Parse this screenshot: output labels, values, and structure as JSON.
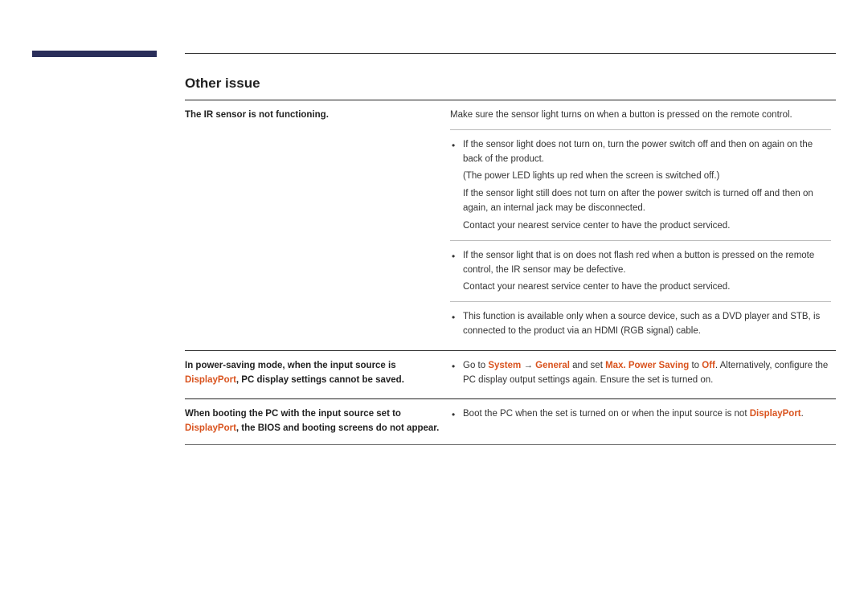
{
  "section_title": "Other issue",
  "row1": {
    "left": "The IR sensor is not functioning.",
    "intro": "Make sure the sensor light turns on when a button is pressed on the remote control.",
    "b1": "If the sensor light does not turn on, turn the power switch off and then on again on the back of the product.",
    "b1_paren": "(The power LED lights up red when the screen is switched off.)",
    "b1_p2": "If the sensor light still does not turn on after the power switch is turned off and then on again, an internal jack may be disconnected.",
    "b1_p3": "Contact your nearest service center to have the product serviced.",
    "b2": "If the sensor light that is on does not flash red when a button is pressed on the remote control, the IR sensor may be defective.",
    "b2_p2": "Contact your nearest service center to have the product serviced.",
    "b3": "This function is available only when a source device, such as a DVD player and STB, is connected to the product via an HDMI (RGB signal) cable."
  },
  "row2": {
    "left_pre": "In power-saving mode, when the input source is ",
    "left_hl": "DisplayPort",
    "left_post": ", PC display settings cannot be saved.",
    "r_pre": "Go to ",
    "r_system": "System",
    "r_arrow": " → ",
    "r_general": "General",
    "r_mid": " and set ",
    "r_max": "Max. Power Saving",
    "r_to": " to ",
    "r_off": "Off",
    "r_post": ". Alternatively, configure the PC display output settings again. Ensure the set is turned on."
  },
  "row3": {
    "left_pre": "When booting the PC with the input source set to ",
    "left_hl": "DisplayPort",
    "left_post": ", the BIOS and booting screens do not appear.",
    "r_pre": "Boot the PC when the set is turned on or when the input source is not ",
    "r_hl": "DisplayPort",
    "r_post": "."
  }
}
